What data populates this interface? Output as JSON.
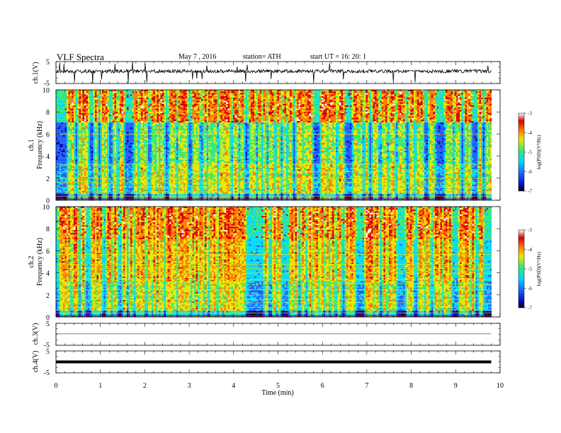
{
  "header": {
    "title": "VLF  Spectra",
    "date": "May 7  , 2016",
    "station": "station= ATH",
    "start": "start  UT  =   16: 20: 1"
  },
  "colors": {
    "trace": "#000000",
    "colormap": [
      "#000000",
      "#0000aa",
      "#1e5cff",
      "#00d8ff",
      "#38e870",
      "#e8e800",
      "#ff7a00",
      "#d80000",
      "#ffffff"
    ]
  },
  "chart_data": [
    {
      "type": "line",
      "name": "ch1-waveform",
      "ylabel": "ch.1(V)",
      "yticks": [
        "5",
        "-5"
      ],
      "ylim": [
        -5,
        5
      ],
      "xlim": [
        0,
        10
      ],
      "baseline": 0,
      "data_end_min": 9.8
    },
    {
      "type": "heatmap",
      "name": "ch1-spectrogram",
      "ylabel": "ch.1\nFrequency (kHz)",
      "ylabel_line1": "ch.1",
      "ylabel_line2": "Frequency (kHz)",
      "yticks": [
        "0",
        "2",
        "4",
        "6",
        "8",
        "10"
      ],
      "ylim": [
        0,
        10
      ],
      "xlim": [
        0,
        10
      ],
      "data_end_min": 9.8,
      "colorbar": {
        "label": "log(PSD)(V²/Hz)",
        "ticks": [
          "-3",
          "-4",
          "-5",
          "-6",
          "-7"
        ],
        "range": [
          -7,
          -3
        ]
      }
    },
    {
      "type": "heatmap",
      "name": "ch2-spectrogram",
      "ylabel": "ch.2\nFrequency (kHz)",
      "ylabel_line1": "ch.2",
      "ylabel_line2": "Frequency (kHz)",
      "yticks": [
        "0",
        "2",
        "4",
        "6",
        "8",
        "10"
      ],
      "ylim": [
        0,
        10
      ],
      "xlim": [
        0,
        10
      ],
      "data_end_min": 9.8,
      "colorbar": {
        "label": "log(PSD)(V²/Hz)",
        "ticks": [
          "-3",
          "-4",
          "-5",
          "-6",
          "-7"
        ],
        "range": [
          -7,
          -3
        ]
      }
    },
    {
      "type": "line",
      "name": "ch3-waveform",
      "ylabel": "ch.3(V)",
      "yticks": [
        "5",
        "-5"
      ],
      "ylim": [
        -5,
        5
      ],
      "xlim": [
        0,
        10
      ],
      "baseline": 0,
      "data_end_min": 9.8
    },
    {
      "type": "line",
      "name": "ch4-waveform",
      "ylabel": "ch.4(V)",
      "yticks": [
        "5",
        "-5"
      ],
      "ylim": [
        -5,
        5
      ],
      "xlim": [
        0,
        10
      ],
      "baseline": 0,
      "data_end_min": 9.8
    }
  ],
  "xaxis": {
    "label": "Time  (min)",
    "ticks": [
      "0",
      "1",
      "2",
      "3",
      "4",
      "5",
      "6",
      "7",
      "8",
      "9",
      "10"
    ]
  }
}
